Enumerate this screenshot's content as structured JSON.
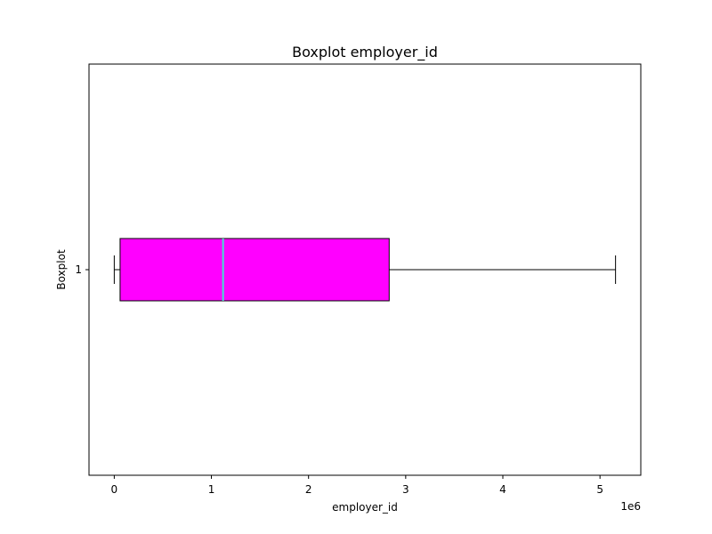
{
  "chart_data": {
    "type": "boxplot",
    "title": "Boxplot employer_id",
    "xlabel": "employer_id",
    "ylabel": "Boxplot",
    "orientation": "horizontal",
    "x_scale_label": "1e6",
    "xlim": [
      -0.26,
      5.42
    ],
    "x_ticks": [
      0,
      1,
      2,
      3,
      4,
      5
    ],
    "x_tick_labels": [
      "0",
      "1",
      "2",
      "3",
      "4",
      "5"
    ],
    "y_tick_labels": [
      "1"
    ],
    "grid": false,
    "series": [
      {
        "category": "1",
        "whisker_low": 0.0,
        "q1": 0.06,
        "median": 1.12,
        "q3": 2.83,
        "whisker_high": 5.16
      }
    ],
    "colors": {
      "box_fill": "#ff00ff",
      "median_line": "#40e0d0",
      "outline": "#000000"
    }
  }
}
